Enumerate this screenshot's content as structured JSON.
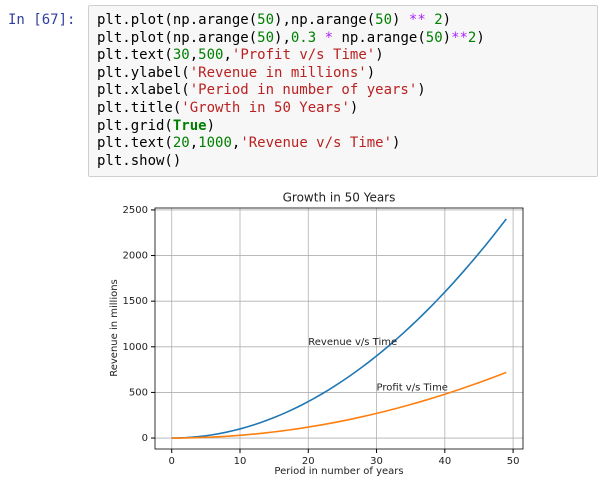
{
  "prompt": "In [67]:",
  "code": {
    "lines": [
      "plt.plot(np.arange(50),np.arange(50) ** 2)",
      "plt.plot(np.arange(50),0.3 * np.arange(50)**2)",
      "plt.text(30,500,'Profit v/s Time')",
      "plt.ylabel('Revenue in millions')",
      "plt.xlabel('Period in number of years')",
      "plt.title('Growth in 50 Years')",
      "plt.grid(True)",
      "plt.text(20,1000,'Revenue v/s Time')",
      "plt.show()"
    ]
  },
  "chart_data": {
    "type": "line",
    "title": "Growth in 50 Years",
    "x_label": "Period in number of years",
    "y_label": "Revenue in millions",
    "x": [
      0,
      1,
      2,
      3,
      4,
      5,
      6,
      7,
      8,
      9,
      10,
      11,
      12,
      13,
      14,
      15,
      16,
      17,
      18,
      19,
      20,
      21,
      22,
      23,
      24,
      25,
      26,
      27,
      28,
      29,
      30,
      31,
      32,
      33,
      34,
      35,
      36,
      37,
      38,
      39,
      40,
      41,
      42,
      43,
      44,
      45,
      46,
      47,
      48,
      49
    ],
    "series": [
      {
        "color": "#1f77b4",
        "values": [
          0,
          1,
          4,
          9,
          16,
          25,
          36,
          49,
          64,
          81,
          100,
          121,
          144,
          169,
          196,
          225,
          256,
          289,
          324,
          361,
          400,
          441,
          484,
          529,
          576,
          625,
          676,
          729,
          784,
          841,
          900,
          961,
          1024,
          1089,
          1156,
          1225,
          1296,
          1369,
          1444,
          1521,
          1600,
          1681,
          1764,
          1849,
          1936,
          2025,
          2116,
          2209,
          2304,
          2401
        ]
      },
      {
        "color": "#ff7f0e",
        "values": [
          0,
          0.3,
          1.2,
          2.7,
          4.8,
          7.5,
          10.8,
          14.7,
          19.2,
          24.3,
          30,
          36.3,
          43.2,
          50.7,
          58.8,
          67.5,
          76.8,
          86.7,
          97.2,
          108.3,
          120,
          132.3,
          145.2,
          158.7,
          172.8,
          187.5,
          202.8,
          218.7,
          235.2,
          252.3,
          270,
          288.3,
          307.2,
          326.7,
          346.8,
          367.5,
          388.8,
          410.7,
          433.2,
          456.3,
          480,
          504.3,
          529.2,
          554.7,
          580.8,
          607.5,
          634.8,
          662.7,
          691.2,
          720.3
        ]
      }
    ],
    "annotations": [
      {
        "text": "Profit v/s Time",
        "x": 30,
        "y": 500
      },
      {
        "text": "Revenue v/s Time",
        "x": 20,
        "y": 1000
      }
    ],
    "xlim": [
      -2.45,
      51.45
    ],
    "ylim": [
      -120.05,
      2521.05
    ],
    "xticks": [
      0,
      10,
      20,
      30,
      40,
      50
    ],
    "yticks": [
      0,
      500,
      1000,
      1500,
      2000,
      2500
    ],
    "grid": true
  }
}
